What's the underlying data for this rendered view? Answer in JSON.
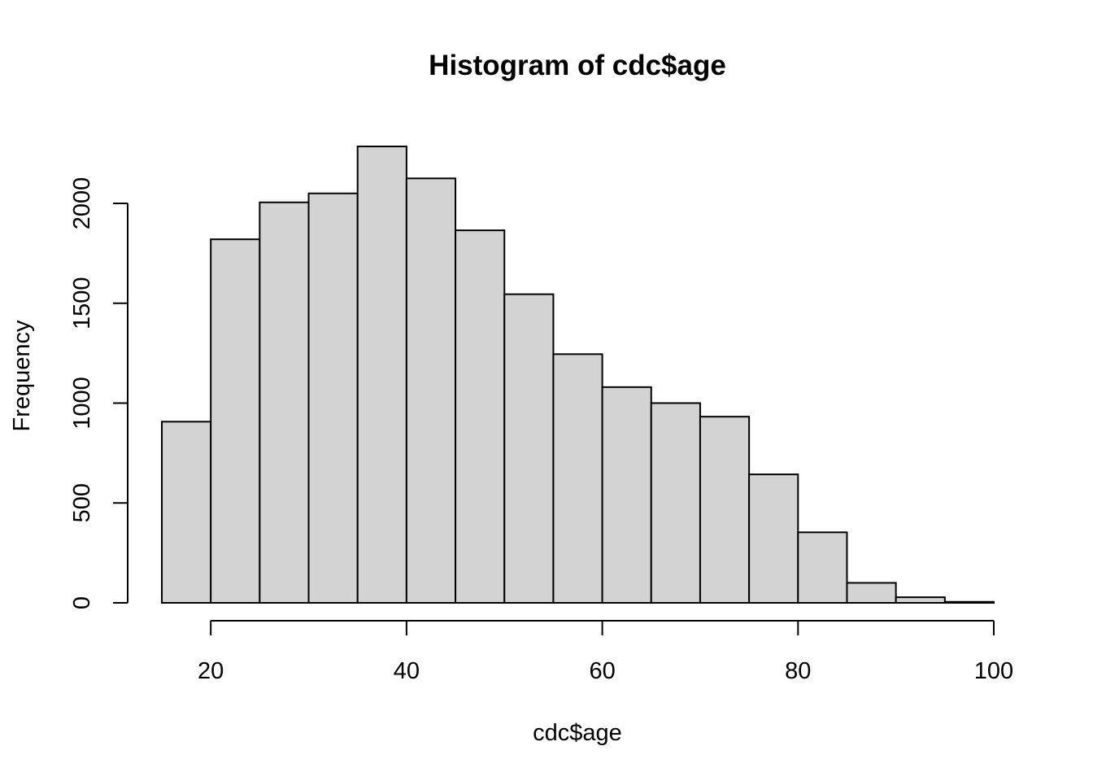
{
  "chart_data": {
    "type": "bar",
    "title": "Histogram of cdc$age",
    "xlabel": "cdc$age",
    "ylabel": "Frequency",
    "bins": [
      {
        "start": 15,
        "end": 20,
        "value": 907
      },
      {
        "start": 20,
        "end": 25,
        "value": 1820
      },
      {
        "start": 25,
        "end": 30,
        "value": 2005
      },
      {
        "start": 30,
        "end": 35,
        "value": 2050
      },
      {
        "start": 35,
        "end": 40,
        "value": 2285
      },
      {
        "start": 40,
        "end": 45,
        "value": 2125
      },
      {
        "start": 45,
        "end": 50,
        "value": 1865
      },
      {
        "start": 50,
        "end": 55,
        "value": 1545
      },
      {
        "start": 55,
        "end": 60,
        "value": 1245
      },
      {
        "start": 60,
        "end": 65,
        "value": 1080
      },
      {
        "start": 65,
        "end": 70,
        "value": 1000
      },
      {
        "start": 70,
        "end": 75,
        "value": 932
      },
      {
        "start": 75,
        "end": 80,
        "value": 643
      },
      {
        "start": 80,
        "end": 85,
        "value": 353
      },
      {
        "start": 85,
        "end": 90,
        "value": 100
      },
      {
        "start": 90,
        "end": 95,
        "value": 28
      },
      {
        "start": 95,
        "end": 100,
        "value": 5
      }
    ],
    "xlim": [
      15,
      100
    ],
    "ylim": [
      0,
      2285
    ],
    "x_ticks": [
      20,
      40,
      60,
      80,
      100
    ],
    "y_ticks": [
      0,
      500,
      1000,
      1500,
      2000
    ],
    "bar_color": "#d3d3d3",
    "edge_color": "#000000",
    "grid": false
  }
}
